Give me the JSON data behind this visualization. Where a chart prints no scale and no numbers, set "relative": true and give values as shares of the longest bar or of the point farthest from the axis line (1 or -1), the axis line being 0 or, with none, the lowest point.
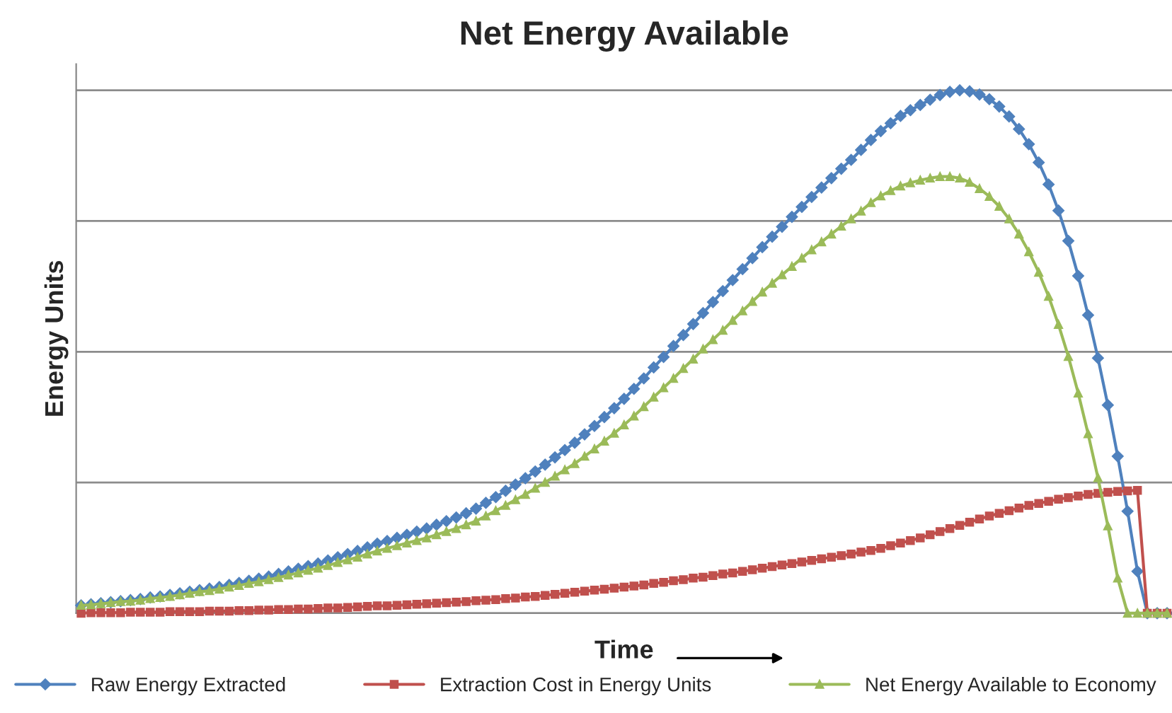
{
  "chart_data": {
    "type": "line",
    "title": "Net Energy Available",
    "xlabel": "Time",
    "ylabel": "Energy Units",
    "relative": true,
    "grid": "y",
    "legend": "bottom",
    "line_style": "solid",
    "categories": [
      null,
      null,
      null,
      null,
      null,
      null,
      null,
      null,
      null,
      null,
      null,
      null,
      null,
      null,
      null,
      null,
      null,
      null,
      null,
      null,
      null,
      null,
      null,
      null,
      null,
      null,
      null,
      null,
      null,
      null,
      null,
      null,
      null,
      null,
      null,
      null,
      null,
      null,
      null,
      null,
      null,
      null,
      null,
      null,
      null,
      null,
      null,
      null,
      null,
      null,
      null,
      null,
      null,
      null,
      null,
      null,
      null,
      null,
      null,
      null,
      null,
      null,
      null,
      null,
      null,
      null,
      null,
      null,
      null,
      null,
      null,
      null,
      null,
      null,
      null,
      null,
      null,
      null,
      null,
      null,
      null,
      null,
      null,
      null,
      null,
      null,
      null,
      null,
      null,
      null,
      null,
      null,
      null,
      null,
      null,
      null,
      null,
      null,
      null,
      null,
      null,
      null,
      null,
      null,
      null,
      null,
      null,
      null,
      null,
      null,
      null
    ],
    "series": [
      {
        "name": "Raw Energy Extracted",
        "color": "#4f81bd",
        "marker": "diamond",
        "values": [
          0.015,
          0.017,
          0.019,
          0.021,
          0.023,
          0.025,
          0.027,
          0.03,
          0.032,
          0.035,
          0.038,
          0.041,
          0.044,
          0.047,
          0.05,
          0.054,
          0.058,
          0.062,
          0.066,
          0.07,
          0.075,
          0.08,
          0.085,
          0.09,
          0.095,
          0.101,
          0.107,
          0.113,
          0.119,
          0.126,
          0.133,
          0.138,
          0.144,
          0.15,
          0.156,
          0.162,
          0.169,
          0.176,
          0.183,
          0.191,
          0.2,
          0.211,
          0.222,
          0.234,
          0.246,
          0.258,
          0.271,
          0.284,
          0.298,
          0.312,
          0.326,
          0.342,
          0.358,
          0.375,
          0.392,
          0.41,
          0.429,
          0.449,
          0.47,
          0.49,
          0.511,
          0.532,
          0.553,
          0.574,
          0.595,
          0.616,
          0.637,
          0.658,
          0.679,
          0.7,
          0.72,
          0.739,
          0.758,
          0.777,
          0.796,
          0.814,
          0.832,
          0.85,
          0.867,
          0.886,
          0.905,
          0.922,
          0.937,
          0.951,
          0.962,
          0.972,
          0.982,
          0.991,
          0.997,
          1.0,
          0.998,
          0.992,
          0.983,
          0.969,
          0.95,
          0.926,
          0.897,
          0.862,
          0.82,
          0.77,
          0.712,
          0.645,
          0.57,
          0.488,
          0.398,
          0.3,
          0.195,
          0.08,
          0,
          0,
          0
        ]
      },
      {
        "name": "Extraction Cost in Energy Units",
        "color": "#c0504d",
        "marker": "square",
        "values": [
          0.0,
          0.001,
          0.001,
          0.001,
          0.001,
          0.002,
          0.002,
          0.002,
          0.002,
          0.003,
          0.003,
          0.003,
          0.003,
          0.004,
          0.004,
          0.004,
          0.005,
          0.005,
          0.006,
          0.006,
          0.007,
          0.007,
          0.008,
          0.008,
          0.009,
          0.01,
          0.01,
          0.011,
          0.012,
          0.013,
          0.014,
          0.014,
          0.015,
          0.016,
          0.017,
          0.018,
          0.019,
          0.02,
          0.021,
          0.022,
          0.024,
          0.025,
          0.026,
          0.028,
          0.029,
          0.031,
          0.032,
          0.034,
          0.036,
          0.038,
          0.04,
          0.042,
          0.044,
          0.046,
          0.048,
          0.05,
          0.052,
          0.054,
          0.057,
          0.059,
          0.062,
          0.064,
          0.067,
          0.069,
          0.072,
          0.075,
          0.077,
          0.08,
          0.083,
          0.086,
          0.089,
          0.092,
          0.095,
          0.098,
          0.101,
          0.104,
          0.107,
          0.11,
          0.113,
          0.117,
          0.12,
          0.124,
          0.129,
          0.134,
          0.139,
          0.144,
          0.15,
          0.156,
          0.162,
          0.168,
          0.174,
          0.18,
          0.186,
          0.191,
          0.196,
          0.201,
          0.206,
          0.21,
          0.214,
          0.218,
          0.221,
          0.224,
          0.227,
          0.229,
          0.231,
          0.233,
          0.234,
          0.235,
          0,
          0,
          0
        ]
      },
      {
        "name": "Net Energy Available to Economy",
        "color": "#9bbb59",
        "marker": "triangle",
        "values": [
          0.015,
          0.016,
          0.018,
          0.02,
          0.022,
          0.023,
          0.025,
          0.028,
          0.03,
          0.032,
          0.035,
          0.038,
          0.041,
          0.043,
          0.046,
          0.05,
          0.053,
          0.057,
          0.06,
          0.064,
          0.068,
          0.073,
          0.077,
          0.082,
          0.086,
          0.091,
          0.097,
          0.102,
          0.107,
          0.113,
          0.119,
          0.124,
          0.129,
          0.134,
          0.139,
          0.144,
          0.15,
          0.156,
          0.162,
          0.169,
          0.176,
          0.186,
          0.196,
          0.206,
          0.217,
          0.227,
          0.239,
          0.25,
          0.262,
          0.274,
          0.286,
          0.3,
          0.314,
          0.329,
          0.344,
          0.36,
          0.377,
          0.395,
          0.413,
          0.431,
          0.449,
          0.468,
          0.486,
          0.505,
          0.523,
          0.541,
          0.56,
          0.578,
          0.596,
          0.614,
          0.631,
          0.647,
          0.663,
          0.679,
          0.695,
          0.71,
          0.725,
          0.74,
          0.754,
          0.769,
          0.785,
          0.798,
          0.808,
          0.817,
          0.823,
          0.828,
          0.832,
          0.835,
          0.835,
          0.832,
          0.824,
          0.812,
          0.797,
          0.778,
          0.754,
          0.725,
          0.691,
          0.652,
          0.606,
          0.552,
          0.491,
          0.421,
          0.343,
          0.259,
          0.167,
          0.067,
          0,
          0,
          0,
          0,
          0
        ]
      }
    ]
  }
}
